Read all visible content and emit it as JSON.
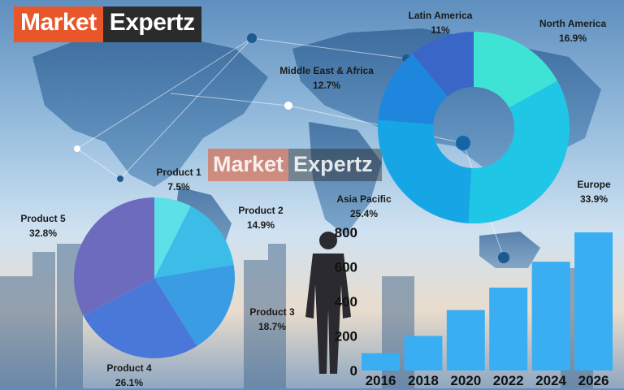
{
  "brand": {
    "part1": "Market",
    "part2": "Expertz"
  },
  "watermark": {
    "part1": "Market",
    "part2": "Expertz"
  },
  "colors": {
    "brand_orange": "#e8562a",
    "brand_dark": "#2b2b2b",
    "bar": "#3aaef2"
  },
  "chart_data": [
    {
      "type": "pie",
      "title": "",
      "categories": [
        "Product 1",
        "Product 2",
        "Product 3",
        "Product 4",
        "Product 5"
      ],
      "values": [
        7.5,
        14.9,
        18.7,
        26.1,
        32.8
      ],
      "labels": [
        "7.5%",
        "14.9%",
        "18.7%",
        "26.1%",
        "32.8%"
      ],
      "colors": [
        "#5ee0e8",
        "#3cbde8",
        "#3a9ce3",
        "#4a78d8",
        "#6c6bbd"
      ]
    },
    {
      "type": "pie",
      "subtype": "donut",
      "title": "",
      "categories": [
        "North America",
        "Europe",
        "Asia Pacific",
        "Middle East & Africa",
        "Latin America"
      ],
      "values": [
        16.9,
        33.9,
        25.4,
        12.7,
        11
      ],
      "labels": [
        "16.9%",
        "33.9%",
        "25.4%",
        "12.7%",
        "11%"
      ],
      "colors": [
        "#3ee3d6",
        "#1fc6e6",
        "#16a6e6",
        "#1e86dc",
        "#3a66c8"
      ]
    },
    {
      "type": "bar",
      "title": "",
      "categories": [
        "2016",
        "2018",
        "2020",
        "2022",
        "2024",
        "2026"
      ],
      "values": [
        100,
        200,
        350,
        480,
        630,
        800
      ],
      "ylim": [
        0,
        800
      ],
      "yticks": [
        "0",
        "200",
        "400",
        "600",
        "800"
      ],
      "xlabel": "",
      "ylabel": "",
      "grid": false
    }
  ]
}
